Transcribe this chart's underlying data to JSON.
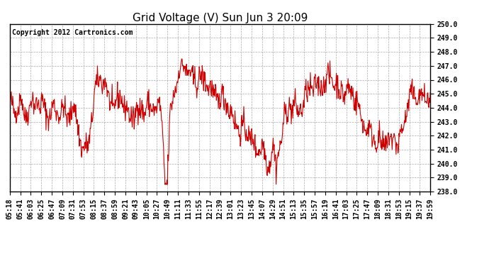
{
  "title": "Grid Voltage (V) Sun Jun 3 20:09",
  "copyright": "Copyright 2012 Cartronics.com",
  "ylim": [
    238.0,
    250.0
  ],
  "yticks": [
    238.0,
    239.0,
    240.0,
    241.0,
    242.0,
    243.0,
    244.0,
    245.0,
    246.0,
    247.0,
    248.0,
    249.0,
    250.0
  ],
  "line_color": "#cc0000",
  "bg_color": "#ffffff",
  "plot_bg_color": "#ffffff",
  "grid_color": "#aaaaaa",
  "title_fontsize": 11,
  "tick_fontsize": 7,
  "copyright_fontsize": 7,
  "xtick_labels": [
    "05:18",
    "05:41",
    "06:03",
    "06:25",
    "06:47",
    "07:09",
    "07:31",
    "07:53",
    "08:15",
    "08:37",
    "08:59",
    "09:21",
    "09:43",
    "10:05",
    "10:27",
    "10:49",
    "11:11",
    "11:33",
    "11:55",
    "12:17",
    "12:39",
    "13:01",
    "13:23",
    "13:45",
    "14:07",
    "14:29",
    "14:51",
    "15:13",
    "15:35",
    "15:57",
    "16:19",
    "16:41",
    "17:03",
    "17:25",
    "17:47",
    "18:09",
    "18:31",
    "18:53",
    "19:15",
    "19:37",
    "19:59"
  ],
  "seed": 42,
  "n_points": 860
}
